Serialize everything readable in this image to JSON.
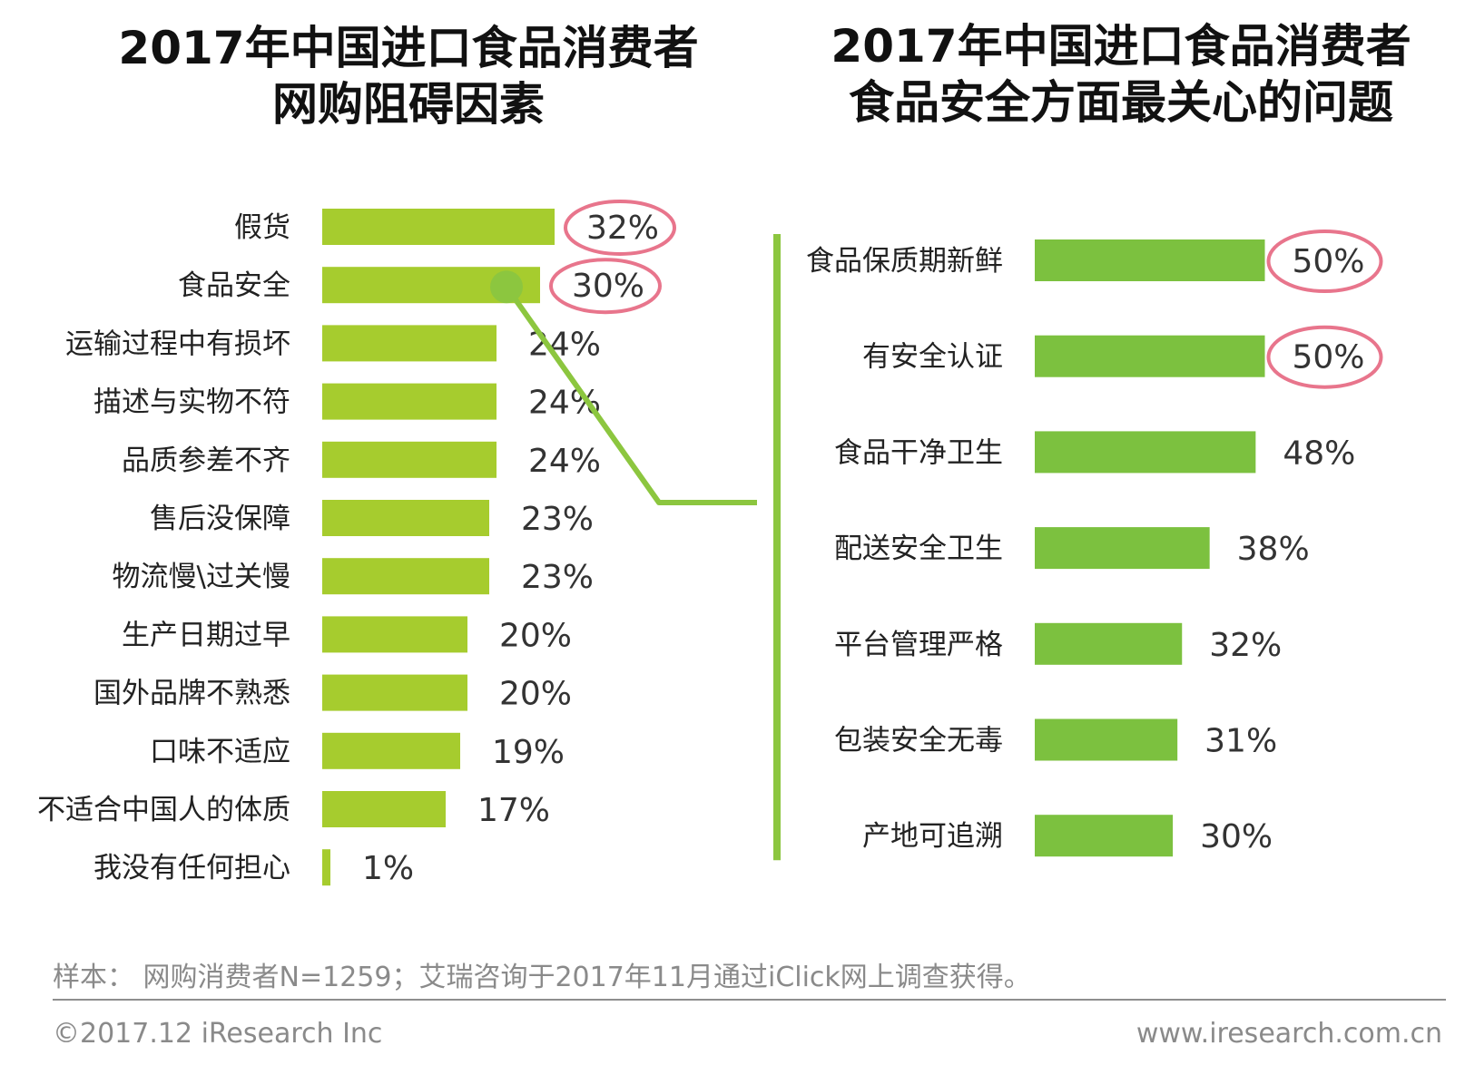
{
  "colors": {
    "left_bar": "#a6cc2e",
    "right_bar": "#7cc13f",
    "connector": "#8cc63f",
    "highlight_circle": "#e8758c"
  },
  "chart_data": [
    {
      "type": "bar",
      "orientation": "horizontal",
      "title": "2017年中国进口食品消费者网购阻碍因素",
      "title_lines": [
        "2017年中国进口食品消费者",
        "网购阻碍因素"
      ],
      "categories": [
        "假货",
        "食品安全",
        "运输过程中有损坏",
        "描述与实物不符",
        "品质参差不齐",
        "售后没保障",
        "物流慢\\过关慢",
        "生产日期过早",
        "国外品牌不熟悉",
        "口味不适应",
        "不适合中国人的体质",
        "我没有任何担心"
      ],
      "values": [
        32,
        30,
        24,
        24,
        24,
        23,
        23,
        20,
        20,
        19,
        17,
        1
      ],
      "value_labels": [
        "32%",
        "30%",
        "24%",
        "24%",
        "24%",
        "23%",
        "23%",
        "20%",
        "20%",
        "19%",
        "17%",
        "1%"
      ],
      "unit": "%",
      "highlighted": [
        "假货",
        "食品安全"
      ],
      "grid": false,
      "legend": "none"
    },
    {
      "type": "bar",
      "orientation": "horizontal",
      "title": "2017年中国进口食品消费者食品安全方面最关心的问题",
      "title_lines": [
        "2017年中国进口食品消费者",
        "食品安全方面最关心的问题"
      ],
      "categories": [
        "食品保质期新鲜",
        "有安全认证",
        "食品干净卫生",
        "配送安全卫生",
        "平台管理严格",
        "包装安全无毒",
        "产地可追溯"
      ],
      "values": [
        50,
        50,
        48,
        38,
        32,
        31,
        30
      ],
      "value_labels": [
        "50%",
        "50%",
        "48%",
        "38%",
        "32%",
        "31%",
        "30%"
      ],
      "unit": "%",
      "highlighted": [
        "食品保质期新鲜",
        "有安全认证"
      ],
      "grid": false,
      "legend": "none"
    }
  ],
  "footer": {
    "note": "样本： 网购消费者N=1259；艾瑞咨询于2017年11月通过iClick网上调查获得。",
    "copyright": "©2017.12 iResearch Inc",
    "website": "www.iresearch.com.cn"
  }
}
